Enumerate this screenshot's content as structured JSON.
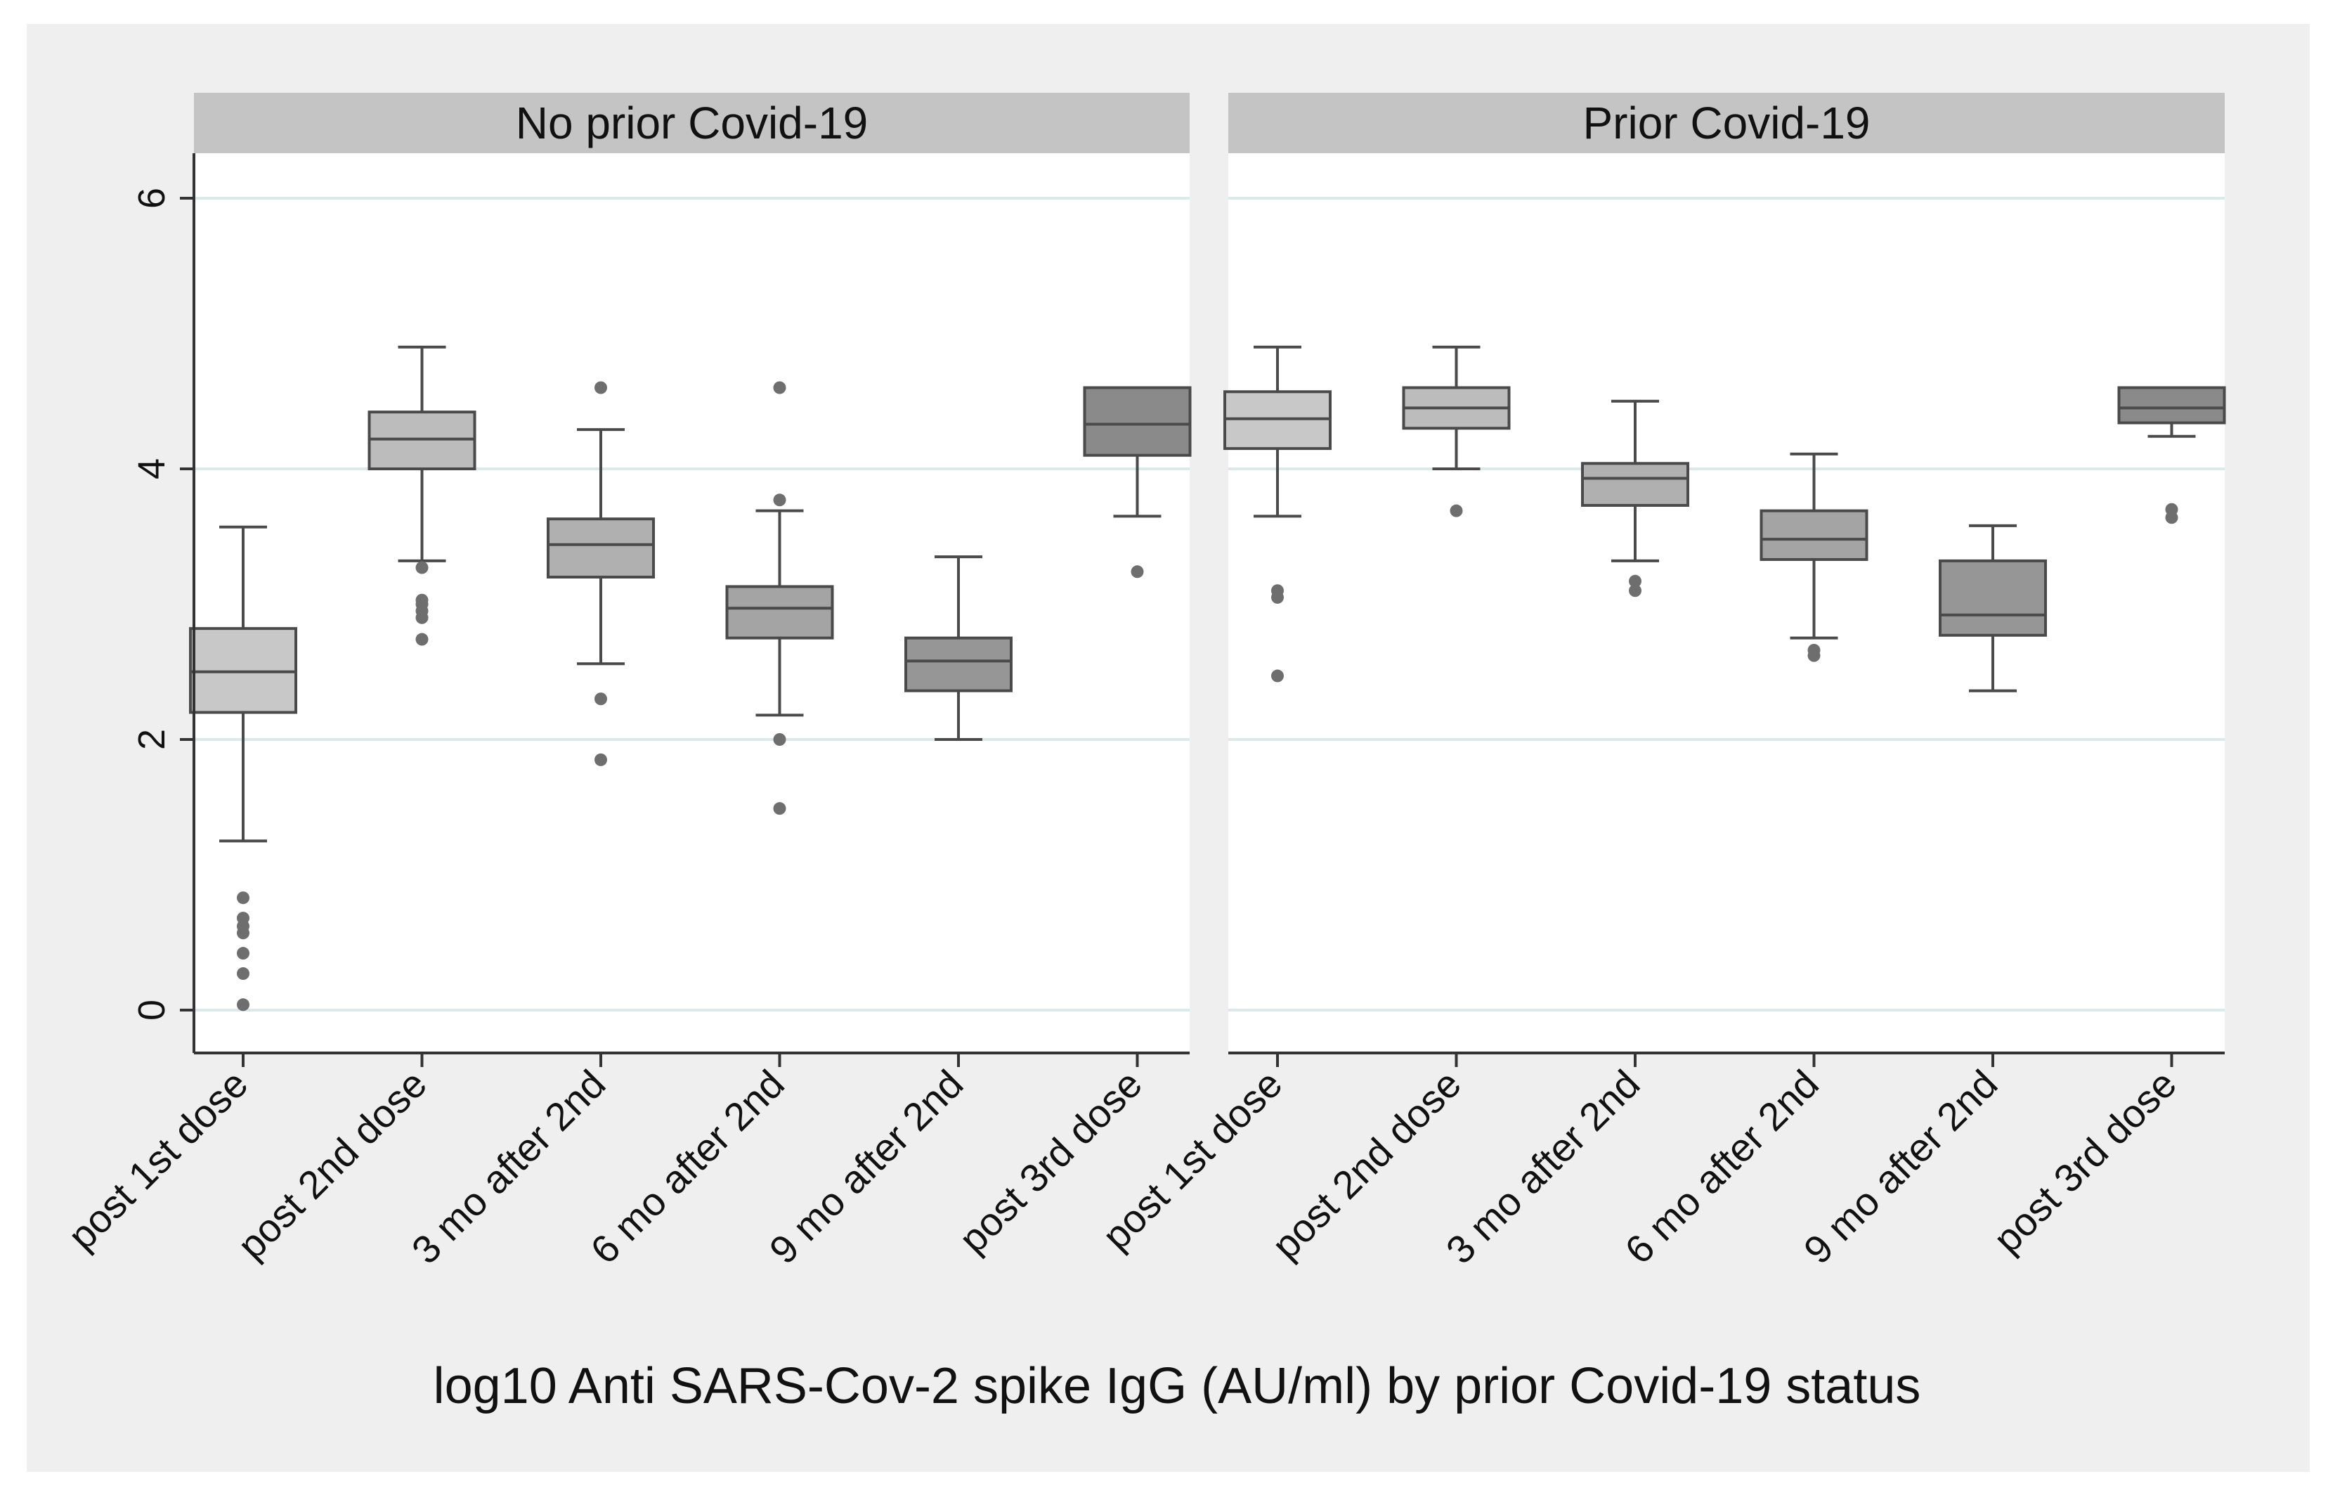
{
  "colors": {
    "outer_background": "#efefef",
    "plot_background": "#ffffff",
    "strip_background": "#c4c4c4",
    "gridline": "#dbe9e9",
    "box_outline": "#4a4a4a",
    "outlier_dot": "#6e6e6e",
    "category_fills": [
      "#c8c8c8",
      "#bcbcbc",
      "#b0b0b0",
      "#a4a4a4",
      "#969696",
      "#8a8a8a"
    ]
  },
  "chart_data": {
    "type": "box",
    "title": "log10 Anti SARS-Cov-2 spike IgG (AU/ml) by prior Covid-19 status",
    "ylim": [
      -0.3,
      6.3
    ],
    "yticks": [
      0,
      2,
      4,
      6
    ],
    "ytick_labels": [
      "0",
      "2",
      "4",
      "6"
    ],
    "grid": true,
    "categories": [
      "post 1st dose",
      "post 2nd dose",
      "3 mo after 2nd",
      "6 mo after 2nd",
      "9 mo after 2nd",
      "post 3rd dose"
    ],
    "panels": [
      {
        "label": "No prior Covid-19",
        "boxes": [
          {
            "category": "post 1st dose",
            "whisker_low": 1.25,
            "q1": 2.2,
            "median": 2.5,
            "q3": 2.82,
            "whisker_high": 3.57,
            "outliers": [
              0.04,
              0.27,
              0.42,
              0.57,
              0.62,
              0.68,
              0.83
            ]
          },
          {
            "category": "post 2nd dose",
            "whisker_low": 3.32,
            "q1": 4.0,
            "median": 4.22,
            "q3": 4.42,
            "whisker_high": 4.9,
            "outliers": [
              2.74,
              2.9,
              2.95,
              3.0,
              3.03,
              3.27
            ]
          },
          {
            "category": "3 mo after 2nd",
            "whisker_low": 2.56,
            "q1": 3.2,
            "median": 3.44,
            "q3": 3.63,
            "whisker_high": 4.29,
            "outliers": [
              1.85,
              2.3,
              4.6
            ]
          },
          {
            "category": "6 mo after 2nd",
            "whisker_low": 2.18,
            "q1": 2.75,
            "median": 2.97,
            "q3": 3.13,
            "whisker_high": 3.69,
            "outliers": [
              1.49,
              2.0,
              3.77,
              4.6
            ]
          },
          {
            "category": "9 mo after 2nd",
            "whisker_low": 2.0,
            "q1": 2.36,
            "median": 2.58,
            "q3": 2.75,
            "whisker_high": 3.35,
            "outliers": []
          },
          {
            "category": "post 3rd dose",
            "whisker_low": 3.65,
            "q1": 4.1,
            "median": 4.33,
            "q3": 4.6,
            "whisker_high": 4.6,
            "outliers": [
              3.24
            ]
          }
        ]
      },
      {
        "label": "Prior Covid-19",
        "boxes": [
          {
            "category": "post 1st dose",
            "whisker_low": 3.65,
            "q1": 4.15,
            "median": 4.37,
            "q3": 4.57,
            "whisker_high": 4.9,
            "outliers": [
              2.47,
              3.05,
              3.1
            ]
          },
          {
            "category": "post 2nd dose",
            "whisker_low": 4.0,
            "q1": 4.3,
            "median": 4.45,
            "q3": 4.6,
            "whisker_high": 4.9,
            "outliers": [
              3.69
            ]
          },
          {
            "category": "3 mo after 2nd",
            "whisker_low": 3.32,
            "q1": 3.73,
            "median": 3.93,
            "q3": 4.04,
            "whisker_high": 4.5,
            "outliers": [
              3.1,
              3.17
            ]
          },
          {
            "category": "6 mo after 2nd",
            "whisker_low": 2.75,
            "q1": 3.33,
            "median": 3.48,
            "q3": 3.69,
            "whisker_high": 4.11,
            "outliers": [
              2.62,
              2.66
            ]
          },
          {
            "category": "9 mo after 2nd",
            "whisker_low": 2.36,
            "q1": 2.77,
            "median": 2.92,
            "q3": 3.32,
            "whisker_high": 3.58,
            "outliers": []
          },
          {
            "category": "post 3rd dose",
            "whisker_low": 4.24,
            "q1": 4.34,
            "median": 4.45,
            "q3": 4.6,
            "whisker_high": 4.6,
            "outliers": [
              3.64,
              3.7
            ]
          }
        ]
      }
    ]
  }
}
